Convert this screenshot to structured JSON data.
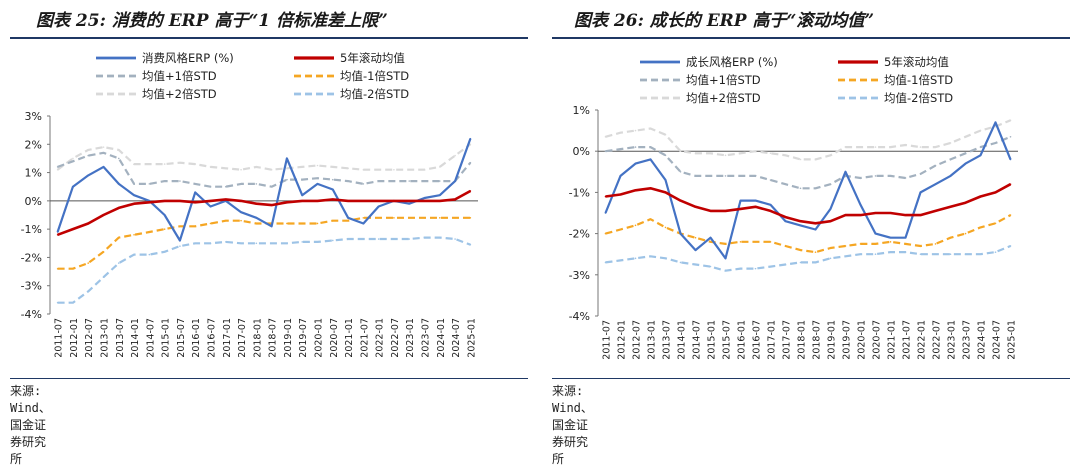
{
  "panels": [
    {
      "title": "图表 25: 消费的 ERP 高于“1 倍标准差上限”",
      "source": "来源: Wind、国金证券研究所"
    },
    {
      "title": "图表 26: 成长的 ERP 高于“滚动均值”",
      "source": "来源: Wind、国金证券研究所"
    }
  ],
  "colors": {
    "erp": "#4472c4",
    "mean": "#c00000",
    "plus1": "#a3b1bf",
    "minus1": "#f5a623",
    "plus2": "#d9d9d9",
    "minus2": "#9dc3e6",
    "title_rule": "#1f3864"
  },
  "chart_data": [
    {
      "type": "line",
      "ylim": [
        -4,
        3
      ],
      "yticks": [
        "3%",
        "2%",
        "1%",
        "0%",
        "-1%",
        "-2%",
        "-3%",
        "-4%"
      ],
      "x": [
        "2011-07",
        "2012-01",
        "2012-07",
        "2013-01",
        "2013-07",
        "2014-01",
        "2014-07",
        "2015-01",
        "2015-07",
        "2016-01",
        "2016-07",
        "2017-01",
        "2017-07",
        "2018-01",
        "2018-07",
        "2019-01",
        "2019-07",
        "2020-01",
        "2020-07",
        "2021-01",
        "2021-07",
        "2022-01",
        "2022-07",
        "2023-01",
        "2023-07",
        "2024-01",
        "2024-07",
        "2025-01"
      ],
      "legend": "top",
      "series": [
        {
          "name": "消费风格ERP (%)",
          "key": "erp",
          "values": [
            -1.1,
            0.5,
            0.9,
            1.2,
            0.6,
            0.2,
            0.0,
            -0.5,
            -1.4,
            0.3,
            -0.2,
            0.0,
            -0.4,
            -0.6,
            -0.9,
            1.5,
            0.2,
            0.6,
            0.4,
            -0.6,
            -0.8,
            -0.2,
            0.0,
            -0.1,
            0.1,
            0.2,
            0.7,
            2.2
          ]
        },
        {
          "name": "5年滚动均值",
          "key": "mean",
          "values": [
            -1.2,
            -1.0,
            -0.8,
            -0.5,
            -0.25,
            -0.1,
            -0.05,
            0.0,
            0.0,
            -0.05,
            0.0,
            0.05,
            0.0,
            -0.1,
            -0.15,
            -0.05,
            0.0,
            0.0,
            0.05,
            0.0,
            0.0,
            0.0,
            0.0,
            0.0,
            0.0,
            0.0,
            0.05,
            0.35
          ]
        },
        {
          "name": "均值+1倍STD",
          "key": "plus1",
          "values": [
            1.2,
            1.4,
            1.6,
            1.7,
            1.5,
            0.6,
            0.6,
            0.7,
            0.7,
            0.6,
            0.5,
            0.5,
            0.6,
            0.6,
            0.5,
            0.75,
            0.75,
            0.8,
            0.75,
            0.7,
            0.6,
            0.7,
            0.7,
            0.7,
            0.7,
            0.7,
            0.7,
            1.35
          ]
        },
        {
          "name": "均值-1倍STD",
          "key": "minus1",
          "values": [
            -2.4,
            -2.4,
            -2.2,
            -1.8,
            -1.3,
            -1.2,
            -1.1,
            -1.0,
            -0.9,
            -0.9,
            -0.8,
            -0.7,
            -0.7,
            -0.8,
            -0.8,
            -0.8,
            -0.8,
            -0.8,
            -0.7,
            -0.7,
            -0.6,
            -0.6,
            -0.6,
            -0.6,
            -0.6,
            -0.6,
            -0.6,
            -0.6
          ]
        },
        {
          "name": "均值+2倍STD",
          "key": "plus2",
          "values": [
            1.1,
            1.5,
            1.8,
            1.9,
            1.8,
            1.3,
            1.3,
            1.3,
            1.35,
            1.3,
            1.2,
            1.15,
            1.1,
            1.2,
            1.1,
            1.15,
            1.2,
            1.25,
            1.2,
            1.15,
            1.1,
            1.1,
            1.1,
            1.1,
            1.1,
            1.2,
            1.6,
            2.0
          ]
        },
        {
          "name": "均值-2倍STD",
          "key": "minus2",
          "values": [
            -3.6,
            -3.6,
            -3.2,
            -2.7,
            -2.2,
            -1.9,
            -1.9,
            -1.8,
            -1.6,
            -1.5,
            -1.5,
            -1.45,
            -1.5,
            -1.5,
            -1.5,
            -1.5,
            -1.45,
            -1.45,
            -1.4,
            -1.35,
            -1.35,
            -1.35,
            -1.35,
            -1.35,
            -1.3,
            -1.3,
            -1.35,
            -1.55
          ]
        }
      ]
    },
    {
      "type": "line",
      "ylim": [
        -4,
        1
      ],
      "yticks": [
        "1%",
        "0%",
        "-1%",
        "-2%",
        "-3%",
        "-4%"
      ],
      "x": [
        "2011-07",
        "2012-01",
        "2012-07",
        "2013-01",
        "2013-07",
        "2014-01",
        "2014-07",
        "2015-01",
        "2015-07",
        "2016-01",
        "2016-07",
        "2017-01",
        "2017-07",
        "2018-01",
        "2018-07",
        "2019-01",
        "2019-07",
        "2020-01",
        "2020-07",
        "2021-01",
        "2021-07",
        "2022-01",
        "2022-07",
        "2023-01",
        "2023-07",
        "2024-01",
        "2024-07",
        "2025-01"
      ],
      "legend": "top",
      "series": [
        {
          "name": "成长风格ERP (%)",
          "key": "erp",
          "values": [
            -1.5,
            -0.6,
            -0.3,
            -0.2,
            -0.7,
            -2.0,
            -2.4,
            -2.1,
            -2.6,
            -1.2,
            -1.2,
            -1.3,
            -1.7,
            -1.8,
            -1.9,
            -1.4,
            -0.5,
            -1.3,
            -2.0,
            -2.1,
            -2.1,
            -1.0,
            -0.8,
            -0.6,
            -0.3,
            -0.1,
            0.7,
            -0.2
          ]
        },
        {
          "name": "5年滚动均值",
          "key": "mean",
          "values": [
            -1.1,
            -1.05,
            -0.95,
            -0.9,
            -1.0,
            -1.2,
            -1.35,
            -1.45,
            -1.45,
            -1.4,
            -1.35,
            -1.45,
            -1.6,
            -1.7,
            -1.75,
            -1.7,
            -1.55,
            -1.55,
            -1.5,
            -1.5,
            -1.55,
            -1.55,
            -1.45,
            -1.35,
            -1.25,
            -1.1,
            -1.0,
            -0.8
          ]
        },
        {
          "name": "均值+1倍STD",
          "key": "plus1",
          "values": [
            0.0,
            0.05,
            0.1,
            0.1,
            -0.1,
            -0.5,
            -0.6,
            -0.6,
            -0.6,
            -0.6,
            -0.6,
            -0.7,
            -0.8,
            -0.9,
            -0.9,
            -0.8,
            -0.6,
            -0.65,
            -0.6,
            -0.6,
            -0.65,
            -0.55,
            -0.35,
            -0.2,
            -0.05,
            0.1,
            0.2,
            0.35
          ]
        },
        {
          "name": "均值-1倍STD",
          "key": "minus1",
          "values": [
            -2.0,
            -1.9,
            -1.8,
            -1.65,
            -1.85,
            -2.0,
            -2.1,
            -2.2,
            -2.25,
            -2.2,
            -2.2,
            -2.2,
            -2.3,
            -2.4,
            -2.45,
            -2.35,
            -2.3,
            -2.25,
            -2.25,
            -2.2,
            -2.25,
            -2.3,
            -2.25,
            -2.1,
            -2.0,
            -1.85,
            -1.75,
            -1.55
          ]
        },
        {
          "name": "均值+2倍STD",
          "key": "plus2",
          "values": [
            0.35,
            0.45,
            0.5,
            0.55,
            0.4,
            0.0,
            -0.05,
            -0.05,
            -0.1,
            -0.05,
            0.0,
            -0.05,
            -0.1,
            -0.2,
            -0.2,
            -0.1,
            0.1,
            0.1,
            0.1,
            0.1,
            0.15,
            0.1,
            0.1,
            0.2,
            0.35,
            0.5,
            0.6,
            0.75
          ]
        },
        {
          "name": "均值-2倍STD",
          "key": "minus2",
          "values": [
            -2.7,
            -2.65,
            -2.6,
            -2.55,
            -2.6,
            -2.7,
            -2.75,
            -2.8,
            -2.9,
            -2.85,
            -2.85,
            -2.8,
            -2.75,
            -2.7,
            -2.7,
            -2.6,
            -2.55,
            -2.5,
            -2.5,
            -2.45,
            -2.45,
            -2.5,
            -2.5,
            -2.5,
            -2.5,
            -2.5,
            -2.45,
            -2.3
          ]
        }
      ]
    }
  ]
}
